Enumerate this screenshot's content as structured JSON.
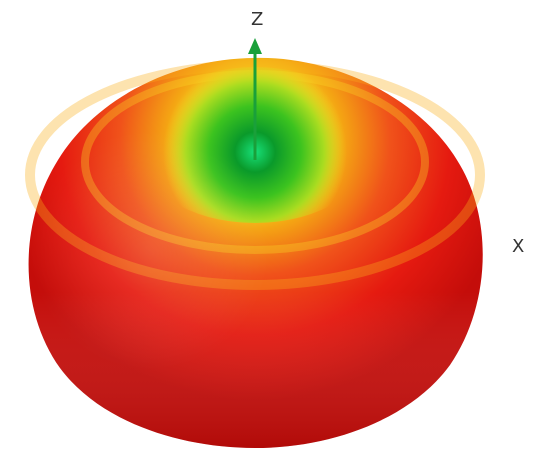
{
  "axes": {
    "z_label": "Z",
    "x_label": "X",
    "arrow_color": "#1aa03a"
  },
  "shape": {
    "depicts": "radiation-pattern-torus",
    "colors": {
      "outer": "#e8140f",
      "mid": "#f2a00f",
      "ring": "#f5e020",
      "inner": "#78d21e",
      "center": "#0a9e2a"
    }
  }
}
